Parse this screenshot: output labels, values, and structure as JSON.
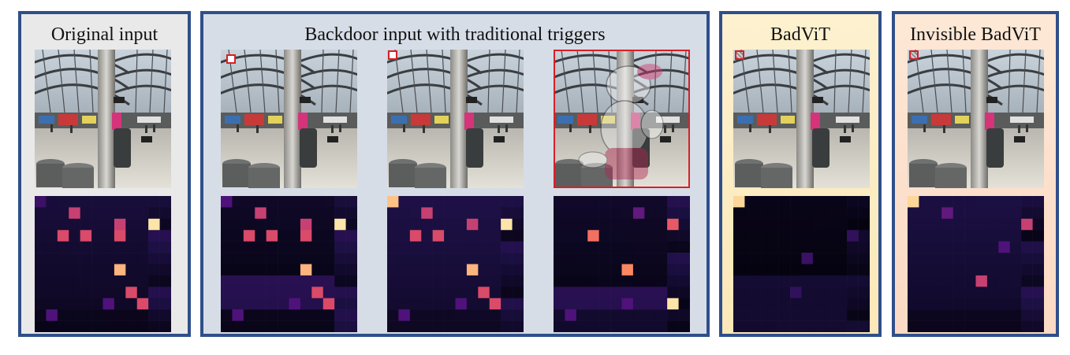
{
  "panels": {
    "original": {
      "title": "Original input"
    },
    "traditional": {
      "title": "Backdoor input with traditional triggers"
    },
    "badvit": {
      "title": "BadViT"
    },
    "invisible": {
      "title": "Invisible BadViT"
    }
  },
  "colors": {
    "panel_border": "#2f4f8a",
    "trigger_border": "#d91f26",
    "original_bg": "#e9e9e9",
    "traditional_bg": "#d6dde7",
    "badvit_bg": "#fdf1cf",
    "invisible_bg": "#fde8d6"
  },
  "heatmaps": {
    "grid_size": 12,
    "original": {
      "hot": [
        [
          1,
          3,
          0.55
        ],
        [
          3,
          2,
          0.6
        ],
        [
          3,
          4,
          0.6
        ],
        [
          2,
          7,
          0.55
        ],
        [
          3,
          7,
          0.6
        ],
        [
          2,
          10,
          0.95
        ],
        [
          6,
          7,
          0.85
        ],
        [
          8,
          8,
          0.6
        ],
        [
          9,
          9,
          0.6
        ],
        [
          10,
          1,
          0.25
        ],
        [
          9,
          6,
          0.25
        ],
        [
          0,
          0,
          0.2
        ]
      ]
    },
    "trad1": {
      "hot": [
        [
          1,
          3,
          0.55
        ],
        [
          3,
          2,
          0.6
        ],
        [
          3,
          4,
          0.6
        ],
        [
          2,
          7,
          0.55
        ],
        [
          3,
          7,
          0.6
        ],
        [
          2,
          10,
          0.95
        ],
        [
          6,
          7,
          0.85
        ],
        [
          8,
          8,
          0.6
        ],
        [
          9,
          9,
          0.6
        ],
        [
          10,
          1,
          0.25
        ],
        [
          9,
          6,
          0.25
        ],
        [
          0,
          0,
          0.25
        ]
      ]
    },
    "trad2": {
      "hot": [
        [
          0,
          0,
          0.88
        ],
        [
          1,
          3,
          0.55
        ],
        [
          3,
          2,
          0.6
        ],
        [
          3,
          4,
          0.6
        ],
        [
          2,
          7,
          0.55
        ],
        [
          2,
          10,
          0.95
        ],
        [
          6,
          7,
          0.85
        ],
        [
          8,
          8,
          0.6
        ],
        [
          9,
          9,
          0.6
        ],
        [
          10,
          1,
          0.25
        ],
        [
          9,
          6,
          0.25
        ]
      ]
    },
    "trad3": {
      "hot": [
        [
          3,
          3,
          0.7
        ],
        [
          2,
          10,
          0.65
        ],
        [
          6,
          6,
          0.75
        ],
        [
          9,
          10,
          0.95
        ],
        [
          1,
          7,
          0.3
        ],
        [
          10,
          1,
          0.25
        ],
        [
          9,
          6,
          0.25
        ]
      ]
    },
    "badvit": {
      "hot": [
        [
          0,
          0,
          0.92
        ],
        [
          5,
          6,
          0.2
        ],
        [
          8,
          5,
          0.18
        ],
        [
          3,
          10,
          0.18
        ]
      ]
    },
    "invisible": {
      "hot": [
        [
          0,
          0,
          0.92
        ],
        [
          2,
          10,
          0.55
        ],
        [
          7,
          6,
          0.55
        ],
        [
          1,
          3,
          0.3
        ],
        [
          4,
          8,
          0.25
        ]
      ]
    }
  }
}
